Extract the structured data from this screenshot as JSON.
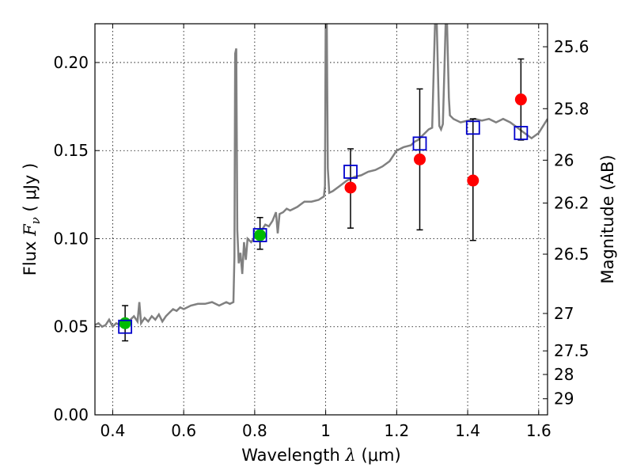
{
  "chart_data": {
    "type": "scatter",
    "xlabel": {
      "prefix": "Wavelength  ",
      "symbol": "λ",
      "suffix": " (μm)"
    },
    "ylabel": {
      "prefix": "Flux  ",
      "symbol": "F",
      "sub": "ν",
      "suffix": "  ( μJy )"
    },
    "y2label": "Magnitude (AB)",
    "xlim": [
      0.35,
      1.625
    ],
    "ylim": [
      0.0,
      0.222
    ],
    "grid": true,
    "x_ticks": [
      {
        "v": 0.4,
        "label": "0.4"
      },
      {
        "v": 0.6,
        "label": "0.6"
      },
      {
        "v": 0.8,
        "label": "0.8"
      },
      {
        "v": 1.0,
        "label": "1"
      },
      {
        "v": 1.2,
        "label": "1.2"
      },
      {
        "v": 1.4,
        "label": "1.4"
      },
      {
        "v": 1.6,
        "label": "1.6"
      }
    ],
    "y_ticks": [
      {
        "v": 0.0,
        "label": "0.00"
      },
      {
        "v": 0.05,
        "label": "0.05"
      },
      {
        "v": 0.1,
        "label": "0.10"
      },
      {
        "v": 0.15,
        "label": "0.15"
      },
      {
        "v": 0.2,
        "label": "0.20"
      }
    ],
    "mag_ticks": [
      {
        "mag": 25.6,
        "label": "25.6"
      },
      {
        "mag": 25.8,
        "label": "25.8"
      },
      {
        "mag": 26.0,
        "label": "26"
      },
      {
        "mag": 26.2,
        "label": "26.2"
      },
      {
        "mag": 26.5,
        "label": "26.5"
      },
      {
        "mag": 27.0,
        "label": "27"
      },
      {
        "mag": 27.5,
        "label": "27.5"
      },
      {
        "mag": 28.0,
        "label": "28"
      },
      {
        "mag": 29.0,
        "label": "29"
      }
    ],
    "colors": {
      "spectrum": "#808080",
      "model": "#0000cc",
      "observed": "#ff0000",
      "optical": "#00bb00",
      "errorbar": "#000000"
    },
    "spectrum": [
      [
        0.35,
        0.051
      ],
      [
        0.36,
        0.052
      ],
      [
        0.37,
        0.05
      ],
      [
        0.38,
        0.051
      ],
      [
        0.39,
        0.054
      ],
      [
        0.4,
        0.05
      ],
      [
        0.41,
        0.052
      ],
      [
        0.42,
        0.051
      ],
      [
        0.43,
        0.053
      ],
      [
        0.44,
        0.05
      ],
      [
        0.45,
        0.054
      ],
      [
        0.46,
        0.056
      ],
      [
        0.47,
        0.053
      ],
      [
        0.475,
        0.064
      ],
      [
        0.48,
        0.052
      ],
      [
        0.49,
        0.055
      ],
      [
        0.5,
        0.053
      ],
      [
        0.51,
        0.056
      ],
      [
        0.52,
        0.054
      ],
      [
        0.53,
        0.057
      ],
      [
        0.54,
        0.053
      ],
      [
        0.55,
        0.056
      ],
      [
        0.56,
        0.058
      ],
      [
        0.57,
        0.06
      ],
      [
        0.58,
        0.059
      ],
      [
        0.59,
        0.061
      ],
      [
        0.6,
        0.06
      ],
      [
        0.62,
        0.062
      ],
      [
        0.64,
        0.063
      ],
      [
        0.66,
        0.063
      ],
      [
        0.68,
        0.064
      ],
      [
        0.7,
        0.062
      ],
      [
        0.72,
        0.064
      ],
      [
        0.73,
        0.063
      ],
      [
        0.74,
        0.064
      ],
      [
        0.743,
        0.09
      ],
      [
        0.745,
        0.205
      ],
      [
        0.748,
        0.208
      ],
      [
        0.751,
        0.105
      ],
      [
        0.755,
        0.086
      ],
      [
        0.76,
        0.092
      ],
      [
        0.765,
        0.08
      ],
      [
        0.77,
        0.098
      ],
      [
        0.775,
        0.088
      ],
      [
        0.78,
        0.1
      ],
      [
        0.79,
        0.098
      ],
      [
        0.8,
        0.101
      ],
      [
        0.81,
        0.102
      ],
      [
        0.82,
        0.105
      ],
      [
        0.83,
        0.108
      ],
      [
        0.84,
        0.107
      ],
      [
        0.85,
        0.11
      ],
      [
        0.86,
        0.115
      ],
      [
        0.865,
        0.103
      ],
      [
        0.87,
        0.114
      ],
      [
        0.88,
        0.115
      ],
      [
        0.89,
        0.117
      ],
      [
        0.9,
        0.116
      ],
      [
        0.92,
        0.118
      ],
      [
        0.94,
        0.121
      ],
      [
        0.96,
        0.121
      ],
      [
        0.98,
        0.122
      ],
      [
        0.995,
        0.124
      ],
      [
        0.998,
        0.13
      ],
      [
        1.0,
        0.222
      ],
      [
        1.003,
        0.222
      ],
      [
        1.006,
        0.14
      ],
      [
        1.01,
        0.126
      ],
      [
        1.02,
        0.127
      ],
      [
        1.04,
        0.13
      ],
      [
        1.06,
        0.133
      ],
      [
        1.08,
        0.135
      ],
      [
        1.1,
        0.136
      ],
      [
        1.12,
        0.138
      ],
      [
        1.14,
        0.139
      ],
      [
        1.16,
        0.141
      ],
      [
        1.18,
        0.144
      ],
      [
        1.2,
        0.15
      ],
      [
        1.22,
        0.152
      ],
      [
        1.24,
        0.153
      ],
      [
        1.25,
        0.155
      ],
      [
        1.26,
        0.156
      ],
      [
        1.27,
        0.158
      ],
      [
        1.28,
        0.16
      ],
      [
        1.29,
        0.162
      ],
      [
        1.3,
        0.163
      ],
      [
        1.305,
        0.2
      ],
      [
        1.308,
        0.222
      ],
      [
        1.313,
        0.222
      ],
      [
        1.318,
        0.18
      ],
      [
        1.32,
        0.164
      ],
      [
        1.325,
        0.162
      ],
      [
        1.33,
        0.165
      ],
      [
        1.335,
        0.2
      ],
      [
        1.338,
        0.222
      ],
      [
        1.342,
        0.222
      ],
      [
        1.347,
        0.18
      ],
      [
        1.35,
        0.17
      ],
      [
        1.36,
        0.168
      ],
      [
        1.38,
        0.166
      ],
      [
        1.4,
        0.167
      ],
      [
        1.42,
        0.168
      ],
      [
        1.44,
        0.167
      ],
      [
        1.46,
        0.168
      ],
      [
        1.48,
        0.166
      ],
      [
        1.5,
        0.168
      ],
      [
        1.52,
        0.166
      ],
      [
        1.54,
        0.163
      ],
      [
        1.56,
        0.16
      ],
      [
        1.58,
        0.157
      ],
      [
        1.6,
        0.16
      ],
      [
        1.625,
        0.168
      ]
    ],
    "model_points": [
      {
        "x": 0.435,
        "y": 0.05
      },
      {
        "x": 0.815,
        "y": 0.102
      },
      {
        "x": 1.07,
        "y": 0.138
      },
      {
        "x": 1.265,
        "y": 0.154
      },
      {
        "x": 1.415,
        "y": 0.163
      },
      {
        "x": 1.55,
        "y": 0.16
      }
    ],
    "observed_points": [
      {
        "x": 0.435,
        "y": 0.052,
        "yerr_low": 0.042,
        "yerr_high": 0.062,
        "band": "optical"
      },
      {
        "x": 0.815,
        "y": 0.102,
        "yerr_low": 0.094,
        "yerr_high": 0.112,
        "band": "optical"
      },
      {
        "x": 1.07,
        "y": 0.129,
        "yerr_low": 0.106,
        "yerr_high": 0.151,
        "band": "infrared"
      },
      {
        "x": 1.265,
        "y": 0.145,
        "yerr_low": 0.105,
        "yerr_high": 0.185,
        "band": "infrared"
      },
      {
        "x": 1.415,
        "y": 0.133,
        "yerr_low": 0.099,
        "yerr_high": 0.168,
        "band": "infrared"
      },
      {
        "x": 1.55,
        "y": 0.179,
        "yerr_low": 0.156,
        "yerr_high": 0.202,
        "band": "infrared"
      }
    ]
  }
}
